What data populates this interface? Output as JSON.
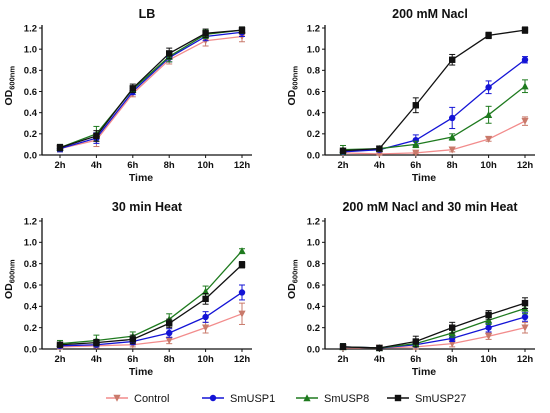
{
  "chart_data": [
    {
      "type": "line",
      "title": "LB",
      "xlabel": "Time",
      "ylabel": "OD",
      "ylabel_sub": "600nm",
      "categories": [
        "2h",
        "4h",
        "6h",
        "8h",
        "10h",
        "12h"
      ],
      "yticks": [
        "0.0",
        "0.2",
        "0.4",
        "0.6",
        "0.8",
        "1.0",
        "1.2"
      ],
      "ylim": [
        0,
        1.2
      ],
      "series": [
        {
          "name": "Control",
          "values": [
            0.06,
            0.14,
            0.58,
            0.9,
            1.08,
            1.12
          ],
          "errors": [
            0.03,
            0.06,
            0.03,
            0.04,
            0.05,
            0.05
          ]
        },
        {
          "name": "SmUSP1",
          "values": [
            0.06,
            0.16,
            0.6,
            0.92,
            1.12,
            1.16
          ],
          "errors": [
            0.03,
            0.05,
            0.03,
            0.04,
            0.04,
            0.04
          ]
        },
        {
          "name": "SmUSP8",
          "values": [
            0.07,
            0.2,
            0.62,
            0.93,
            1.14,
            1.18
          ],
          "errors": [
            0.03,
            0.07,
            0.03,
            0.05,
            0.04,
            0.03
          ]
        },
        {
          "name": "SmUSP27",
          "values": [
            0.07,
            0.18,
            0.63,
            0.96,
            1.15,
            1.18
          ],
          "errors": [
            0.03,
            0.05,
            0.04,
            0.05,
            0.04,
            0.03
          ]
        }
      ]
    },
    {
      "type": "line",
      "title": "200 mM Nacl",
      "xlabel": "Time",
      "ylabel": "OD",
      "ylabel_sub": "600nm",
      "categories": [
        "2h",
        "4h",
        "6h",
        "8h",
        "10h",
        "12h"
      ],
      "yticks": [
        "0.0",
        "0.2",
        "0.4",
        "0.6",
        "0.8",
        "1.0",
        "1.2"
      ],
      "ylim": [
        0,
        1.2
      ],
      "series": [
        {
          "name": "Control",
          "values": [
            0.02,
            0.01,
            0.02,
            0.05,
            0.15,
            0.32
          ],
          "errors": [
            0.01,
            0.01,
            0.01,
            0.02,
            0.02,
            0.04
          ]
        },
        {
          "name": "SmUSP1",
          "values": [
            0.03,
            0.05,
            0.14,
            0.35,
            0.64,
            0.9
          ],
          "errors": [
            0.02,
            0.02,
            0.05,
            0.1,
            0.06,
            0.03
          ]
        },
        {
          "name": "SmUSP8",
          "values": [
            0.05,
            0.06,
            0.1,
            0.17,
            0.38,
            0.65
          ],
          "errors": [
            0.04,
            0.02,
            0.03,
            0.03,
            0.08,
            0.06
          ]
        },
        {
          "name": "SmUSP27",
          "values": [
            0.04,
            0.06,
            0.47,
            0.9,
            1.13,
            1.18
          ],
          "errors": [
            0.02,
            0.02,
            0.07,
            0.05,
            0.03,
            0.03
          ]
        }
      ]
    },
    {
      "type": "line",
      "title": "30 min Heat",
      "xlabel": "Time",
      "ylabel": "OD",
      "ylabel_sub": "600nm",
      "categories": [
        "2h",
        "4h",
        "6h",
        "8h",
        "10h",
        "12h"
      ],
      "yticks": [
        "0.0",
        "0.2",
        "0.4",
        "0.6",
        "0.8",
        "1.0",
        "1.2"
      ],
      "ylim": [
        0,
        1.2
      ],
      "series": [
        {
          "name": "Control",
          "values": [
            0.02,
            0.03,
            0.04,
            0.08,
            0.2,
            0.33
          ],
          "errors": [
            0.02,
            0.02,
            0.02,
            0.03,
            0.05,
            0.1
          ]
        },
        {
          "name": "SmUSP1",
          "values": [
            0.03,
            0.04,
            0.07,
            0.15,
            0.3,
            0.53
          ],
          "errors": [
            0.02,
            0.02,
            0.03,
            0.04,
            0.05,
            0.07
          ]
        },
        {
          "name": "SmUSP8",
          "values": [
            0.05,
            0.08,
            0.12,
            0.28,
            0.54,
            0.92
          ],
          "errors": [
            0.03,
            0.05,
            0.04,
            0.05,
            0.05,
            0.02
          ]
        },
        {
          "name": "SmUSP27",
          "values": [
            0.04,
            0.06,
            0.09,
            0.24,
            0.47,
            0.79
          ],
          "errors": [
            0.02,
            0.03,
            0.04,
            0.04,
            0.05,
            0.03
          ]
        }
      ]
    },
    {
      "type": "line",
      "title": "200 mM Nacl and 30 min Heat",
      "xlabel": "Time",
      "ylabel": "OD",
      "ylabel_sub": "600nm",
      "categories": [
        "2h",
        "4h",
        "6h",
        "8h",
        "10h",
        "12h"
      ],
      "yticks": [
        "0.0",
        "0.2",
        "0.4",
        "0.6",
        "0.8",
        "1.0",
        "1.2"
      ],
      "ylim": [
        0,
        1.2
      ],
      "series": [
        {
          "name": "Control",
          "values": [
            0.01,
            0.01,
            0.02,
            0.05,
            0.12,
            0.2
          ],
          "errors": [
            0.01,
            0.01,
            0.02,
            0.03,
            0.03,
            0.05
          ]
        },
        {
          "name": "SmUSP1",
          "values": [
            0.02,
            0.01,
            0.04,
            0.1,
            0.2,
            0.3
          ],
          "errors": [
            0.03,
            0.01,
            0.02,
            0.03,
            0.04,
            0.04
          ]
        },
        {
          "name": "SmUSP8",
          "values": [
            0.02,
            0.01,
            0.05,
            0.15,
            0.27,
            0.38
          ],
          "errors": [
            0.03,
            0.01,
            0.03,
            0.04,
            0.04,
            0.05
          ]
        },
        {
          "name": "SmUSP27",
          "values": [
            0.02,
            0.01,
            0.07,
            0.2,
            0.32,
            0.43
          ],
          "errors": [
            0.03,
            0.01,
            0.05,
            0.05,
            0.04,
            0.05
          ]
        }
      ]
    }
  ],
  "legend": {
    "placement": "bottom",
    "items": [
      {
        "name": "Control",
        "color": "#c97a6b",
        "marker": "triangle-down"
      },
      {
        "name": "SmUSP1",
        "color": "#1414d6",
        "marker": "circle"
      },
      {
        "name": "SmUSP8",
        "color": "#1e7a1e",
        "marker": "triangle-up"
      },
      {
        "name": "SmUSP27",
        "color": "#111111",
        "marker": "square"
      }
    ]
  },
  "colors": {
    "axis": "#111111",
    "control_line": "#f28c8c",
    "control_marker": "#c97a6b",
    "smusp1": "#1414d6",
    "smusp8": "#1e7a1e",
    "smusp27": "#111111"
  }
}
